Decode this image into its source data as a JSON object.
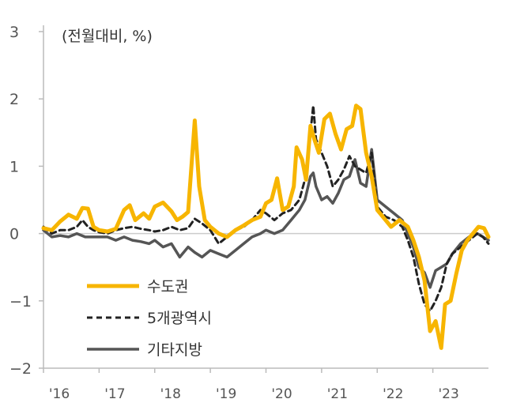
{
  "chart_data": {
    "type": "line",
    "title": "",
    "unit_label": "(전월대비, %)",
    "xlabel": "",
    "ylabel": "",
    "ylim": [
      -2,
      3
    ],
    "yticks": [
      "3",
      "2",
      "1",
      "0",
      "−1",
      "−2"
    ],
    "ytick_values": [
      3,
      2,
      1,
      0,
      -1,
      -2
    ],
    "xlim": [
      2016.0,
      2024.0
    ],
    "xticks": [
      "'16",
      "'17",
      "'18",
      "'19",
      "'20",
      "'21",
      "'22",
      "'23"
    ],
    "xtick_values": [
      2016,
      2017,
      2018,
      2019,
      2020,
      2021,
      2022,
      2023
    ],
    "legend_position": "lower-left",
    "series": [
      {
        "name": "수도권",
        "color": "#F7B500",
        "style": "solid",
        "points": [
          [
            2016.0,
            0.08
          ],
          [
            2016.15,
            0.05
          ],
          [
            2016.3,
            0.18
          ],
          [
            2016.45,
            0.28
          ],
          [
            2016.6,
            0.22
          ],
          [
            2016.7,
            0.38
          ],
          [
            2016.8,
            0.37
          ],
          [
            2016.9,
            0.1
          ],
          [
            2017.0,
            0.05
          ],
          [
            2017.15,
            0.03
          ],
          [
            2017.3,
            0.07
          ],
          [
            2017.45,
            0.35
          ],
          [
            2017.55,
            0.42
          ],
          [
            2017.65,
            0.2
          ],
          [
            2017.8,
            0.3
          ],
          [
            2017.9,
            0.22
          ],
          [
            2018.0,
            0.4
          ],
          [
            2018.15,
            0.46
          ],
          [
            2018.3,
            0.33
          ],
          [
            2018.4,
            0.2
          ],
          [
            2018.5,
            0.25
          ],
          [
            2018.6,
            0.32
          ],
          [
            2018.72,
            1.68
          ],
          [
            2018.8,
            0.7
          ],
          [
            2018.9,
            0.2
          ],
          [
            2019.0,
            0.1
          ],
          [
            2019.15,
            0.0
          ],
          [
            2019.3,
            -0.05
          ],
          [
            2019.45,
            0.05
          ],
          [
            2019.6,
            0.12
          ],
          [
            2019.75,
            0.2
          ],
          [
            2019.9,
            0.25
          ],
          [
            2020.0,
            0.45
          ],
          [
            2020.1,
            0.5
          ],
          [
            2020.2,
            0.82
          ],
          [
            2020.3,
            0.35
          ],
          [
            2020.4,
            0.4
          ],
          [
            2020.5,
            0.7
          ],
          [
            2020.55,
            1.28
          ],
          [
            2020.65,
            1.1
          ],
          [
            2020.72,
            0.8
          ],
          [
            2020.8,
            1.6
          ],
          [
            2020.87,
            1.4
          ],
          [
            2020.95,
            1.2
          ],
          [
            2021.05,
            1.7
          ],
          [
            2021.15,
            1.78
          ],
          [
            2021.25,
            1.48
          ],
          [
            2021.35,
            1.25
          ],
          [
            2021.45,
            1.55
          ],
          [
            2021.55,
            1.6
          ],
          [
            2021.62,
            1.9
          ],
          [
            2021.7,
            1.85
          ],
          [
            2021.8,
            1.2
          ],
          [
            2021.9,
            0.85
          ],
          [
            2022.0,
            0.35
          ],
          [
            2022.15,
            0.2
          ],
          [
            2022.25,
            0.1
          ],
          [
            2022.4,
            0.2
          ],
          [
            2022.55,
            0.1
          ],
          [
            2022.65,
            -0.1
          ],
          [
            2022.75,
            -0.35
          ],
          [
            2022.85,
            -0.7
          ],
          [
            2022.95,
            -1.45
          ],
          [
            2023.05,
            -1.3
          ],
          [
            2023.15,
            -1.7
          ],
          [
            2023.22,
            -1.05
          ],
          [
            2023.32,
            -1.0
          ],
          [
            2023.42,
            -0.6
          ],
          [
            2023.52,
            -0.25
          ],
          [
            2023.62,
            -0.1
          ],
          [
            2023.72,
            0.0
          ],
          [
            2023.82,
            0.1
          ],
          [
            2023.92,
            0.08
          ],
          [
            2024.0,
            -0.05
          ]
        ]
      },
      {
        "name": "5개광역시",
        "color": "#222222",
        "style": "dashed",
        "points": [
          [
            2016.0,
            0.1
          ],
          [
            2016.15,
            0.0
          ],
          [
            2016.3,
            0.05
          ],
          [
            2016.45,
            0.05
          ],
          [
            2016.6,
            0.1
          ],
          [
            2016.7,
            0.2
          ],
          [
            2016.8,
            0.1
          ],
          [
            2016.9,
            0.05
          ],
          [
            2017.0,
            0.02
          ],
          [
            2017.15,
            0.0
          ],
          [
            2017.3,
            0.05
          ],
          [
            2017.45,
            0.08
          ],
          [
            2017.6,
            0.1
          ],
          [
            2017.75,
            0.07
          ],
          [
            2017.9,
            0.05
          ],
          [
            2018.0,
            0.03
          ],
          [
            2018.15,
            0.05
          ],
          [
            2018.3,
            0.1
          ],
          [
            2018.45,
            0.05
          ],
          [
            2018.6,
            0.08
          ],
          [
            2018.72,
            0.22
          ],
          [
            2018.85,
            0.15
          ],
          [
            2019.0,
            0.05
          ],
          [
            2019.15,
            -0.15
          ],
          [
            2019.3,
            -0.05
          ],
          [
            2019.45,
            0.05
          ],
          [
            2019.6,
            0.1
          ],
          [
            2019.75,
            0.2
          ],
          [
            2019.9,
            0.35
          ],
          [
            2020.0,
            0.3
          ],
          [
            2020.15,
            0.2
          ],
          [
            2020.3,
            0.3
          ],
          [
            2020.45,
            0.35
          ],
          [
            2020.6,
            0.5
          ],
          [
            2020.7,
            0.8
          ],
          [
            2020.8,
            1.5
          ],
          [
            2020.85,
            1.9
          ],
          [
            2020.9,
            1.4
          ],
          [
            2021.0,
            1.2
          ],
          [
            2021.1,
            1.0
          ],
          [
            2021.2,
            0.7
          ],
          [
            2021.3,
            0.8
          ],
          [
            2021.4,
            0.95
          ],
          [
            2021.5,
            1.15
          ],
          [
            2021.6,
            1.0
          ],
          [
            2021.7,
            0.95
          ],
          [
            2021.8,
            0.9
          ],
          [
            2021.9,
            1.2
          ],
          [
            2022.0,
            0.4
          ],
          [
            2022.15,
            0.25
          ],
          [
            2022.3,
            0.2
          ],
          [
            2022.45,
            0.1
          ],
          [
            2022.55,
            -0.1
          ],
          [
            2022.65,
            -0.35
          ],
          [
            2022.75,
            -0.75
          ],
          [
            2022.85,
            -1.05
          ],
          [
            2022.95,
            -1.15
          ],
          [
            2023.05,
            -1.0
          ],
          [
            2023.15,
            -0.8
          ],
          [
            2023.25,
            -0.45
          ],
          [
            2023.35,
            -0.3
          ],
          [
            2023.5,
            -0.2
          ],
          [
            2023.65,
            -0.1
          ],
          [
            2023.8,
            0.0
          ],
          [
            2023.9,
            -0.05
          ],
          [
            2024.0,
            -0.15
          ]
        ]
      },
      {
        "name": "기타지방",
        "color": "#555555",
        "style": "solid",
        "points": [
          [
            2016.0,
            0.05
          ],
          [
            2016.15,
            -0.05
          ],
          [
            2016.3,
            -0.03
          ],
          [
            2016.45,
            -0.05
          ],
          [
            2016.6,
            0.0
          ],
          [
            2016.75,
            -0.05
          ],
          [
            2016.9,
            -0.05
          ],
          [
            2017.0,
            -0.05
          ],
          [
            2017.15,
            -0.05
          ],
          [
            2017.3,
            -0.1
          ],
          [
            2017.45,
            -0.05
          ],
          [
            2017.6,
            -0.1
          ],
          [
            2017.75,
            -0.12
          ],
          [
            2017.9,
            -0.15
          ],
          [
            2018.0,
            -0.1
          ],
          [
            2018.15,
            -0.2
          ],
          [
            2018.3,
            -0.15
          ],
          [
            2018.45,
            -0.35
          ],
          [
            2018.6,
            -0.2
          ],
          [
            2018.72,
            -0.28
          ],
          [
            2018.85,
            -0.35
          ],
          [
            2019.0,
            -0.25
          ],
          [
            2019.15,
            -0.3
          ],
          [
            2019.3,
            -0.35
          ],
          [
            2019.45,
            -0.25
          ],
          [
            2019.6,
            -0.15
          ],
          [
            2019.75,
            -0.05
          ],
          [
            2019.9,
            0.0
          ],
          [
            2020.0,
            0.05
          ],
          [
            2020.15,
            0.0
          ],
          [
            2020.3,
            0.05
          ],
          [
            2020.45,
            0.2
          ],
          [
            2020.6,
            0.35
          ],
          [
            2020.7,
            0.5
          ],
          [
            2020.8,
            0.85
          ],
          [
            2020.85,
            0.9
          ],
          [
            2020.9,
            0.7
          ],
          [
            2021.0,
            0.5
          ],
          [
            2021.1,
            0.55
          ],
          [
            2021.2,
            0.45
          ],
          [
            2021.3,
            0.6
          ],
          [
            2021.4,
            0.8
          ],
          [
            2021.5,
            0.85
          ],
          [
            2021.6,
            1.1
          ],
          [
            2021.7,
            0.75
          ],
          [
            2021.8,
            0.7
          ],
          [
            2021.9,
            1.25
          ],
          [
            2022.0,
            0.5
          ],
          [
            2022.15,
            0.4
          ],
          [
            2022.3,
            0.3
          ],
          [
            2022.45,
            0.2
          ],
          [
            2022.55,
            0.0
          ],
          [
            2022.65,
            -0.2
          ],
          [
            2022.75,
            -0.5
          ],
          [
            2022.85,
            -0.58
          ],
          [
            2022.95,
            -0.8
          ],
          [
            2023.05,
            -0.55
          ],
          [
            2023.15,
            -0.5
          ],
          [
            2023.25,
            -0.45
          ],
          [
            2023.35,
            -0.3
          ],
          [
            2023.5,
            -0.15
          ],
          [
            2023.65,
            -0.05
          ],
          [
            2023.8,
            0.0
          ],
          [
            2023.9,
            -0.05
          ],
          [
            2024.0,
            -0.1
          ]
        ]
      }
    ]
  }
}
